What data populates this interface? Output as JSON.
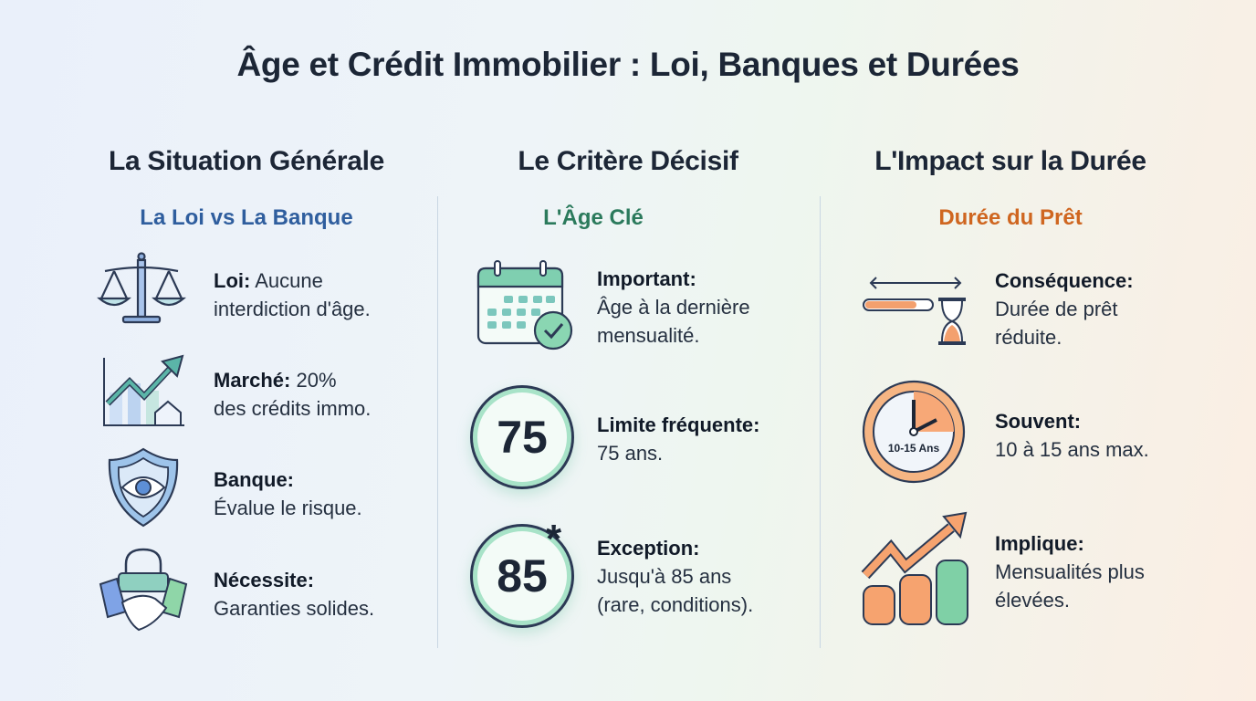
{
  "title": "Âge et Crédit Immobilier : Loi, Banques et Durées",
  "colors": {
    "blue": "#2f5e9e",
    "green": "#2b7a5c",
    "orange": "#cf6620"
  },
  "columns": [
    {
      "heading": "La Situation Générale",
      "subheading": "La Loi vs La Banque",
      "items": [
        {
          "icon": "scales-icon",
          "label": "Loi:",
          "text_1": " Aucune",
          "text_2": "interdiction d'âge."
        },
        {
          "icon": "growth-chart-house-icon",
          "label": "Marché:",
          "text_1": " 20%",
          "text_2": "des crédits immo."
        },
        {
          "icon": "shield-eye-icon",
          "label": "Banque:",
          "text_1": "",
          "text_2": "Évalue le risque."
        },
        {
          "icon": "padlock-handshake-icon",
          "label": "Nécessite:",
          "text_1": "",
          "text_2": "Garanties solides."
        }
      ]
    },
    {
      "heading": "Le Critère Décisif",
      "subheading": "L'Âge Clé",
      "items": [
        {
          "icon": "calendar-check-icon",
          "label": "Important:",
          "text_2": "Âge à la dernière",
          "text_3": "mensualité."
        },
        {
          "icon": "age-75-badge",
          "badge": "75",
          "label": "Limite fréquente:",
          "text_2": "75 ans."
        },
        {
          "icon": "age-85-badge",
          "badge": "85",
          "badge_mark": "*",
          "label": "Exception:",
          "text_2": "Jusqu'à 85 ans",
          "text_3": "(rare, conditions)."
        }
      ]
    },
    {
      "heading": "L'Impact sur la Durée",
      "subheading": "Durée du Prêt",
      "items": [
        {
          "icon": "shortened-bar-hourglass-icon",
          "label": "Conséquence:",
          "text_2": "Durée de prêt",
          "text_3": "réduite."
        },
        {
          "icon": "clock-icon",
          "clock_label": "10-15 Ans",
          "label": "Souvent:",
          "text_2": "10 à 15 ans max."
        },
        {
          "icon": "rising-coins-icon",
          "label": "Implique:",
          "text_2": "Mensualités plus",
          "text_3": "élevées."
        }
      ]
    }
  ]
}
